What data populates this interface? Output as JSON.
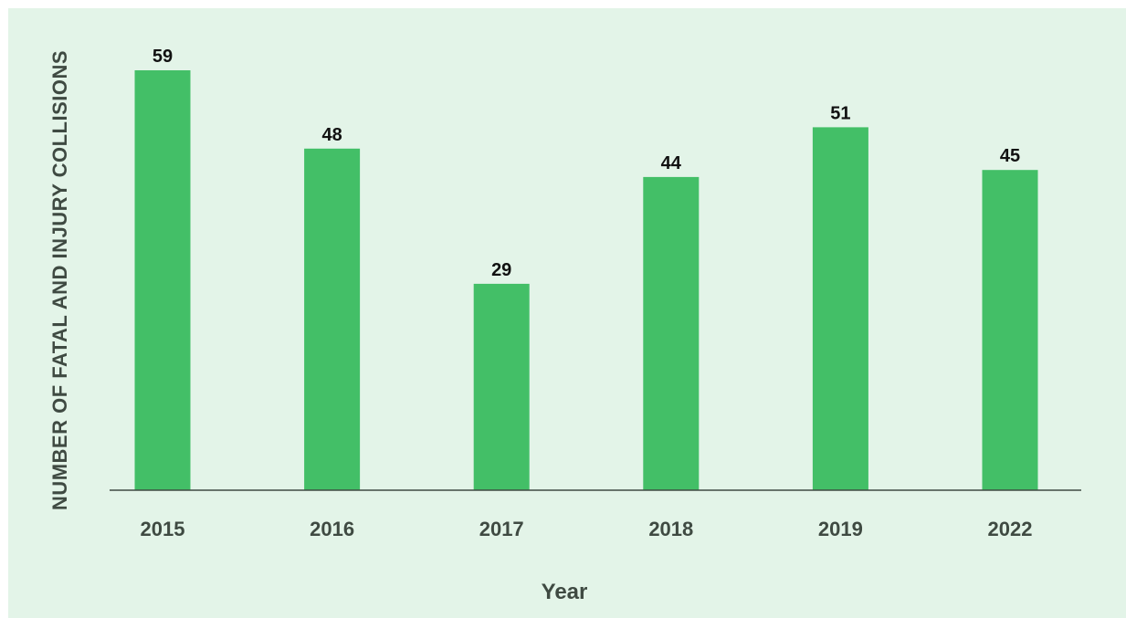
{
  "chart_data": {
    "type": "bar",
    "categories": [
      "2015",
      "2016",
      "2017",
      "2018",
      "2019",
      "2022"
    ],
    "values": [
      59,
      48,
      29,
      44,
      51,
      45
    ],
    "title": "",
    "xlabel": "Year",
    "ylabel": "NUMBER OF FATAL AND INJURY COLLISIONS",
    "ylim": [
      0,
      59
    ],
    "grid": false,
    "legend": "none",
    "data_labels": true,
    "colors": {
      "bar": "#43bf67",
      "background": "#e3f4e8",
      "axis": "#3f4a42",
      "text": "#3f4a42",
      "data_label": "#111111"
    }
  }
}
